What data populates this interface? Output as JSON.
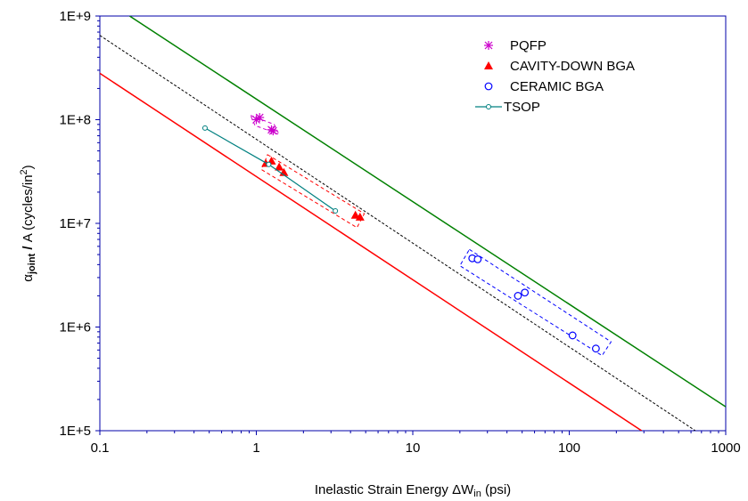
{
  "chart_data": {
    "type": "scatter",
    "x_scale": "log",
    "y_scale": "log",
    "xlim": [
      0.1,
      1000
    ],
    "ylim": [
      100000,
      1000000000
    ],
    "grid": false,
    "legend_position": "top-right",
    "x_ticks": [
      "0.1",
      "1",
      "10",
      "100",
      "1000"
    ],
    "y_ticks": [
      "1E+5",
      "1E+6",
      "1E+7",
      "1E+8",
      "1E+9"
    ],
    "xlabel": {
      "prefix": "Inelastic Strain Energy ",
      "symbol": "ΔW",
      "sub": "in",
      "suffix": " (psi)"
    },
    "ylabel": {
      "symbol": "α",
      "sub": "joint",
      "slash": " / ",
      "mid": "A (cycles/in",
      "sup": "2",
      "end": ")"
    },
    "series": [
      {
        "name": "PQFP",
        "marker": "asterisk",
        "color": "#cc00cc",
        "points": [
          [
            1.0,
            100000000
          ],
          [
            1.05,
            105000000
          ],
          [
            1.25,
            80000000
          ],
          [
            1.28,
            78000000
          ]
        ]
      },
      {
        "name": "CAVITY-DOWN BGA",
        "marker": "triangle",
        "color": "#ff0000",
        "points": [
          [
            1.15,
            38000000
          ],
          [
            1.25,
            40000000
          ],
          [
            1.4,
            35000000
          ],
          [
            1.5,
            31000000
          ],
          [
            4.3,
            12000000
          ],
          [
            4.6,
            11500000
          ]
        ]
      },
      {
        "name": "CERAMIC BGA",
        "marker": "circle",
        "color": "#0000ff",
        "points": [
          [
            24,
            4600000
          ],
          [
            26,
            4500000
          ],
          [
            47,
            2000000
          ],
          [
            52,
            2150000
          ],
          [
            105,
            830000
          ],
          [
            148,
            620000
          ]
        ]
      },
      {
        "name": "TSOP",
        "marker": "line-circle",
        "color": "#008080",
        "points": [
          [
            0.47,
            83000000
          ],
          [
            1.2,
            37000000
          ],
          [
            3.2,
            13200000
          ]
        ]
      }
    ],
    "reference_lines": [
      {
        "color": "#008000",
        "style": "solid",
        "points": [
          [
            0.155,
            1000000000
          ],
          [
            1000,
            170000
          ]
        ]
      },
      {
        "color": "#000000",
        "style": "dashed",
        "points": [
          [
            0.1,
            650000000
          ],
          [
            640,
            100000
          ]
        ]
      },
      {
        "color": "#ff0000",
        "style": "solid",
        "points": [
          [
            0.1,
            280000000
          ],
          [
            290,
            100000
          ]
        ]
      }
    ],
    "annotation_boxes": [
      {
        "color": "#cc00cc",
        "corners": [
          [
            0.92,
            110000000
          ],
          [
            1.3,
            90000000
          ],
          [
            1.4,
            72000000
          ],
          [
            0.98,
            88000000
          ]
        ]
      },
      {
        "color": "#ff0000",
        "corners": [
          [
            1.18,
            46000000
          ],
          [
            4.9,
            12400000
          ],
          [
            4.4,
            9100000
          ],
          [
            1.08,
            33000000
          ]
        ]
      },
      {
        "color": "#0000ff",
        "corners": [
          [
            23,
            5600000
          ],
          [
            185,
            720000
          ],
          [
            162,
            530000
          ],
          [
            20,
            3900000
          ]
        ]
      }
    ]
  }
}
